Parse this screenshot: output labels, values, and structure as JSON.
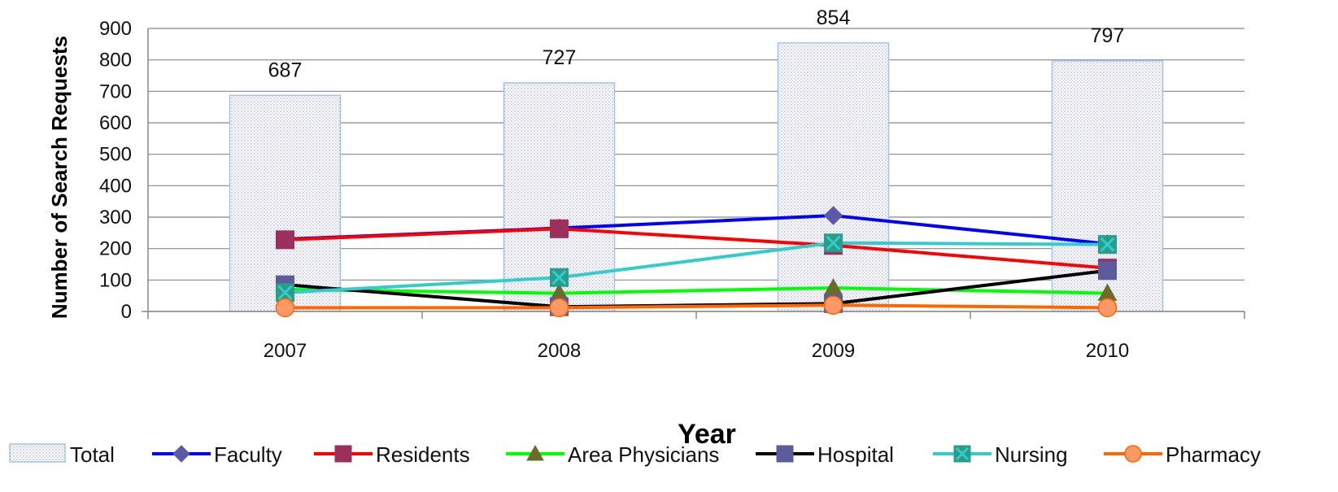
{
  "chart_data": {
    "type": "bar",
    "categories": [
      "2007",
      "2008",
      "2009",
      "2010"
    ],
    "bars": {
      "name": "Total",
      "values": [
        687,
        727,
        854,
        797
      ],
      "data_labels": [
        "687",
        "727",
        "854",
        "797"
      ],
      "color": "#9fc4ee"
    },
    "series": [
      {
        "name": "Faculty",
        "type": "line",
        "values": [
          230,
          265,
          305,
          215
        ],
        "color": "#0000ff",
        "marker": "diamond",
        "marker_color": "#5a5aa8"
      },
      {
        "name": "Residents",
        "type": "line",
        "values": [
          228,
          263,
          210,
          138
        ],
        "color": "#ff0000",
        "marker": "square",
        "marker_color": "#9c2f5c"
      },
      {
        "name": "Area Physicians",
        "type": "line",
        "values": [
          70,
          58,
          75,
          58
        ],
        "color": "#00ff00",
        "marker": "triangle",
        "marker_color": "#6b6b2a"
      },
      {
        "name": "Hospital",
        "type": "line",
        "values": [
          85,
          15,
          25,
          130
        ],
        "color": "#000000",
        "marker": "square",
        "marker_color": "#5c5c9c"
      },
      {
        "name": "Nursing",
        "type": "line",
        "values": [
          60,
          108,
          218,
          213
        ],
        "color": "#33cccc",
        "marker": "x-square",
        "marker_color": "#2a9c8a"
      },
      {
        "name": "Pharmacy",
        "type": "line",
        "values": [
          12,
          12,
          20,
          12
        ],
        "color": "#ff6600",
        "marker": "circle",
        "marker_color": "#ff9966"
      }
    ],
    "ylim": [
      0,
      900
    ],
    "yticks": [
      "0",
      "100",
      "200",
      "300",
      "400",
      "500",
      "600",
      "700",
      "800",
      "900"
    ],
    "xlabel": "Year",
    "ylabel": "Number of Search Requests",
    "grid": "horizontal",
    "legend_position": "bottom"
  }
}
